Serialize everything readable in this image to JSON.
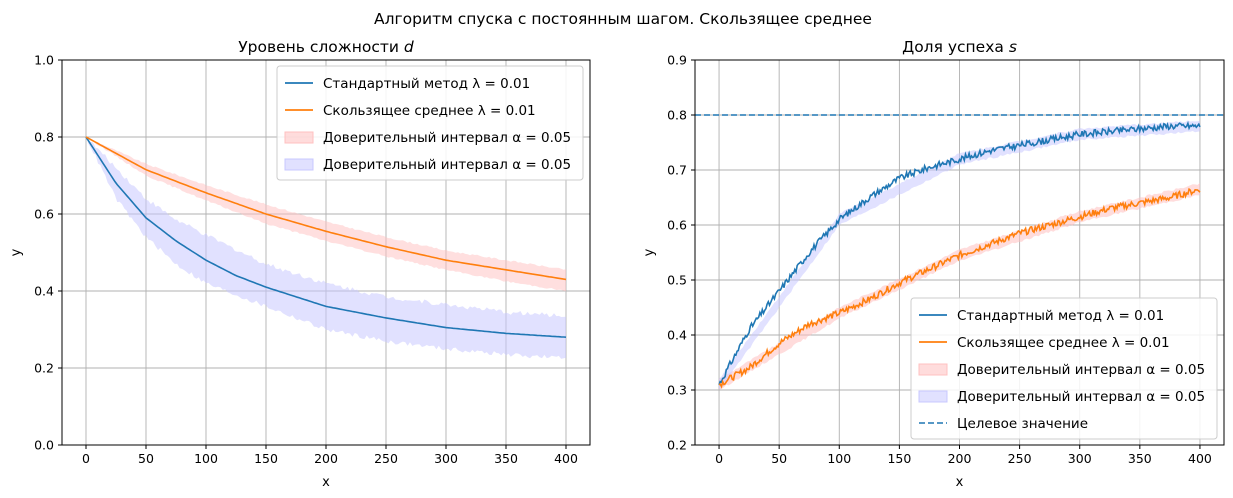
{
  "suptitle": "Алгоритм спуска с постоянным шагом. Скользящее среднее",
  "chart_data": [
    {
      "type": "line",
      "title": "Уровень сложности",
      "title_var": "d",
      "xlabel": "x",
      "ylabel": "y",
      "xlim": [
        -20,
        420
      ],
      "ylim": [
        0.0,
        1.0
      ],
      "xticks": [
        0,
        50,
        100,
        150,
        200,
        250,
        300,
        350,
        400
      ],
      "yticks": [
        0.0,
        0.2,
        0.4,
        0.6,
        0.8,
        1.0
      ],
      "ytick_labels": [
        "0.0",
        "0.2",
        "0.4",
        "0.6",
        "0.8",
        "1.0"
      ],
      "grid": true,
      "legend_position": "top-right",
      "series": [
        {
          "name": "Стандартный метод",
          "param": "λ = 0.01",
          "color": "#1f77b4",
          "kind": "line",
          "x": [
            0,
            25,
            50,
            75,
            100,
            125,
            150,
            175,
            200,
            250,
            300,
            350,
            400
          ],
          "y": [
            0.8,
            0.68,
            0.59,
            0.53,
            0.48,
            0.44,
            0.41,
            0.385,
            0.36,
            0.33,
            0.305,
            0.29,
            0.28
          ]
        },
        {
          "name": "Скользящее среднее",
          "param": "λ = 0.01",
          "color": "#ff7f0e",
          "kind": "line",
          "x": [
            0,
            50,
            100,
            150,
            200,
            250,
            300,
            350,
            400
          ],
          "y": [
            0.8,
            0.715,
            0.655,
            0.6,
            0.555,
            0.515,
            0.48,
            0.455,
            0.43
          ]
        },
        {
          "name": "Доверительный интервал",
          "param": "α = 0.05",
          "color": "#ffc0c0",
          "kind": "band",
          "x": [
            0,
            50,
            100,
            150,
            200,
            250,
            300,
            350,
            400
          ],
          "lower": [
            0.8,
            0.7,
            0.635,
            0.575,
            0.53,
            0.49,
            0.455,
            0.425,
            0.4
          ],
          "upper": [
            0.8,
            0.73,
            0.675,
            0.625,
            0.58,
            0.54,
            0.505,
            0.48,
            0.455
          ]
        },
        {
          "name": "Доверительный интервал",
          "param": "α = 0.05",
          "color": "#c8c8ff",
          "kind": "band",
          "x": [
            0,
            25,
            50,
            75,
            100,
            150,
            200,
            250,
            300,
            350,
            400
          ],
          "lower": [
            0.8,
            0.64,
            0.54,
            0.47,
            0.42,
            0.36,
            0.3,
            0.27,
            0.25,
            0.235,
            0.225
          ],
          "upper": [
            0.8,
            0.72,
            0.64,
            0.585,
            0.545,
            0.47,
            0.42,
            0.385,
            0.365,
            0.345,
            0.335
          ]
        }
      ]
    },
    {
      "type": "line",
      "title": "Доля успеха",
      "title_var": "s",
      "xlabel": "x",
      "ylabel": "y",
      "xlim": [
        -20,
        420
      ],
      "ylim": [
        0.2,
        0.9
      ],
      "xticks": [
        0,
        50,
        100,
        150,
        200,
        250,
        300,
        350,
        400
      ],
      "yticks": [
        0.2,
        0.3,
        0.4,
        0.5,
        0.6,
        0.7,
        0.8,
        0.9
      ],
      "ytick_labels": [
        "0.2",
        "0.3",
        "0.4",
        "0.5",
        "0.6",
        "0.7",
        "0.8",
        "0.9"
      ],
      "grid": true,
      "legend_position": "bottom-right",
      "series": [
        {
          "name": "Стандартный метод",
          "param": "λ = 0.01",
          "color": "#1f77b4",
          "kind": "line",
          "x": [
            0,
            25,
            50,
            75,
            100,
            125,
            150,
            175,
            200,
            225,
            250,
            275,
            300,
            325,
            350,
            375,
            400
          ],
          "y": [
            0.31,
            0.41,
            0.48,
            0.55,
            0.61,
            0.65,
            0.685,
            0.705,
            0.72,
            0.735,
            0.745,
            0.755,
            0.765,
            0.77,
            0.775,
            0.78,
            0.78
          ]
        },
        {
          "name": "Скользящее среднее",
          "param": "λ = 0.01",
          "color": "#ff7f0e",
          "kind": "line",
          "x": [
            0,
            25,
            50,
            75,
            100,
            125,
            150,
            175,
            200,
            225,
            250,
            275,
            300,
            325,
            350,
            375,
            400
          ],
          "y": [
            0.31,
            0.34,
            0.385,
            0.42,
            0.44,
            0.465,
            0.495,
            0.52,
            0.545,
            0.565,
            0.585,
            0.6,
            0.615,
            0.63,
            0.64,
            0.65,
            0.665
          ]
        },
        {
          "name": "Доверительный интервал",
          "param": "α = 0.05",
          "color": "#ffc0c0",
          "kind": "band",
          "x": [
            0,
            100,
            200,
            300,
            400
          ],
          "lower": [
            0.3,
            0.43,
            0.535,
            0.605,
            0.655
          ],
          "upper": [
            0.32,
            0.45,
            0.555,
            0.625,
            0.675
          ]
        },
        {
          "name": "Доверительный интервал",
          "param": "α = 0.05",
          "color": "#c8c8ff",
          "kind": "band",
          "x": [
            0,
            100,
            200,
            300,
            400
          ],
          "lower": [
            0.3,
            0.6,
            0.71,
            0.755,
            0.77
          ],
          "upper": [
            0.32,
            0.62,
            0.73,
            0.775,
            0.79
          ]
        },
        {
          "name": "Целевое значение",
          "param": "",
          "color": "#1f77b4",
          "kind": "hline",
          "y": 0.8
        }
      ]
    }
  ]
}
